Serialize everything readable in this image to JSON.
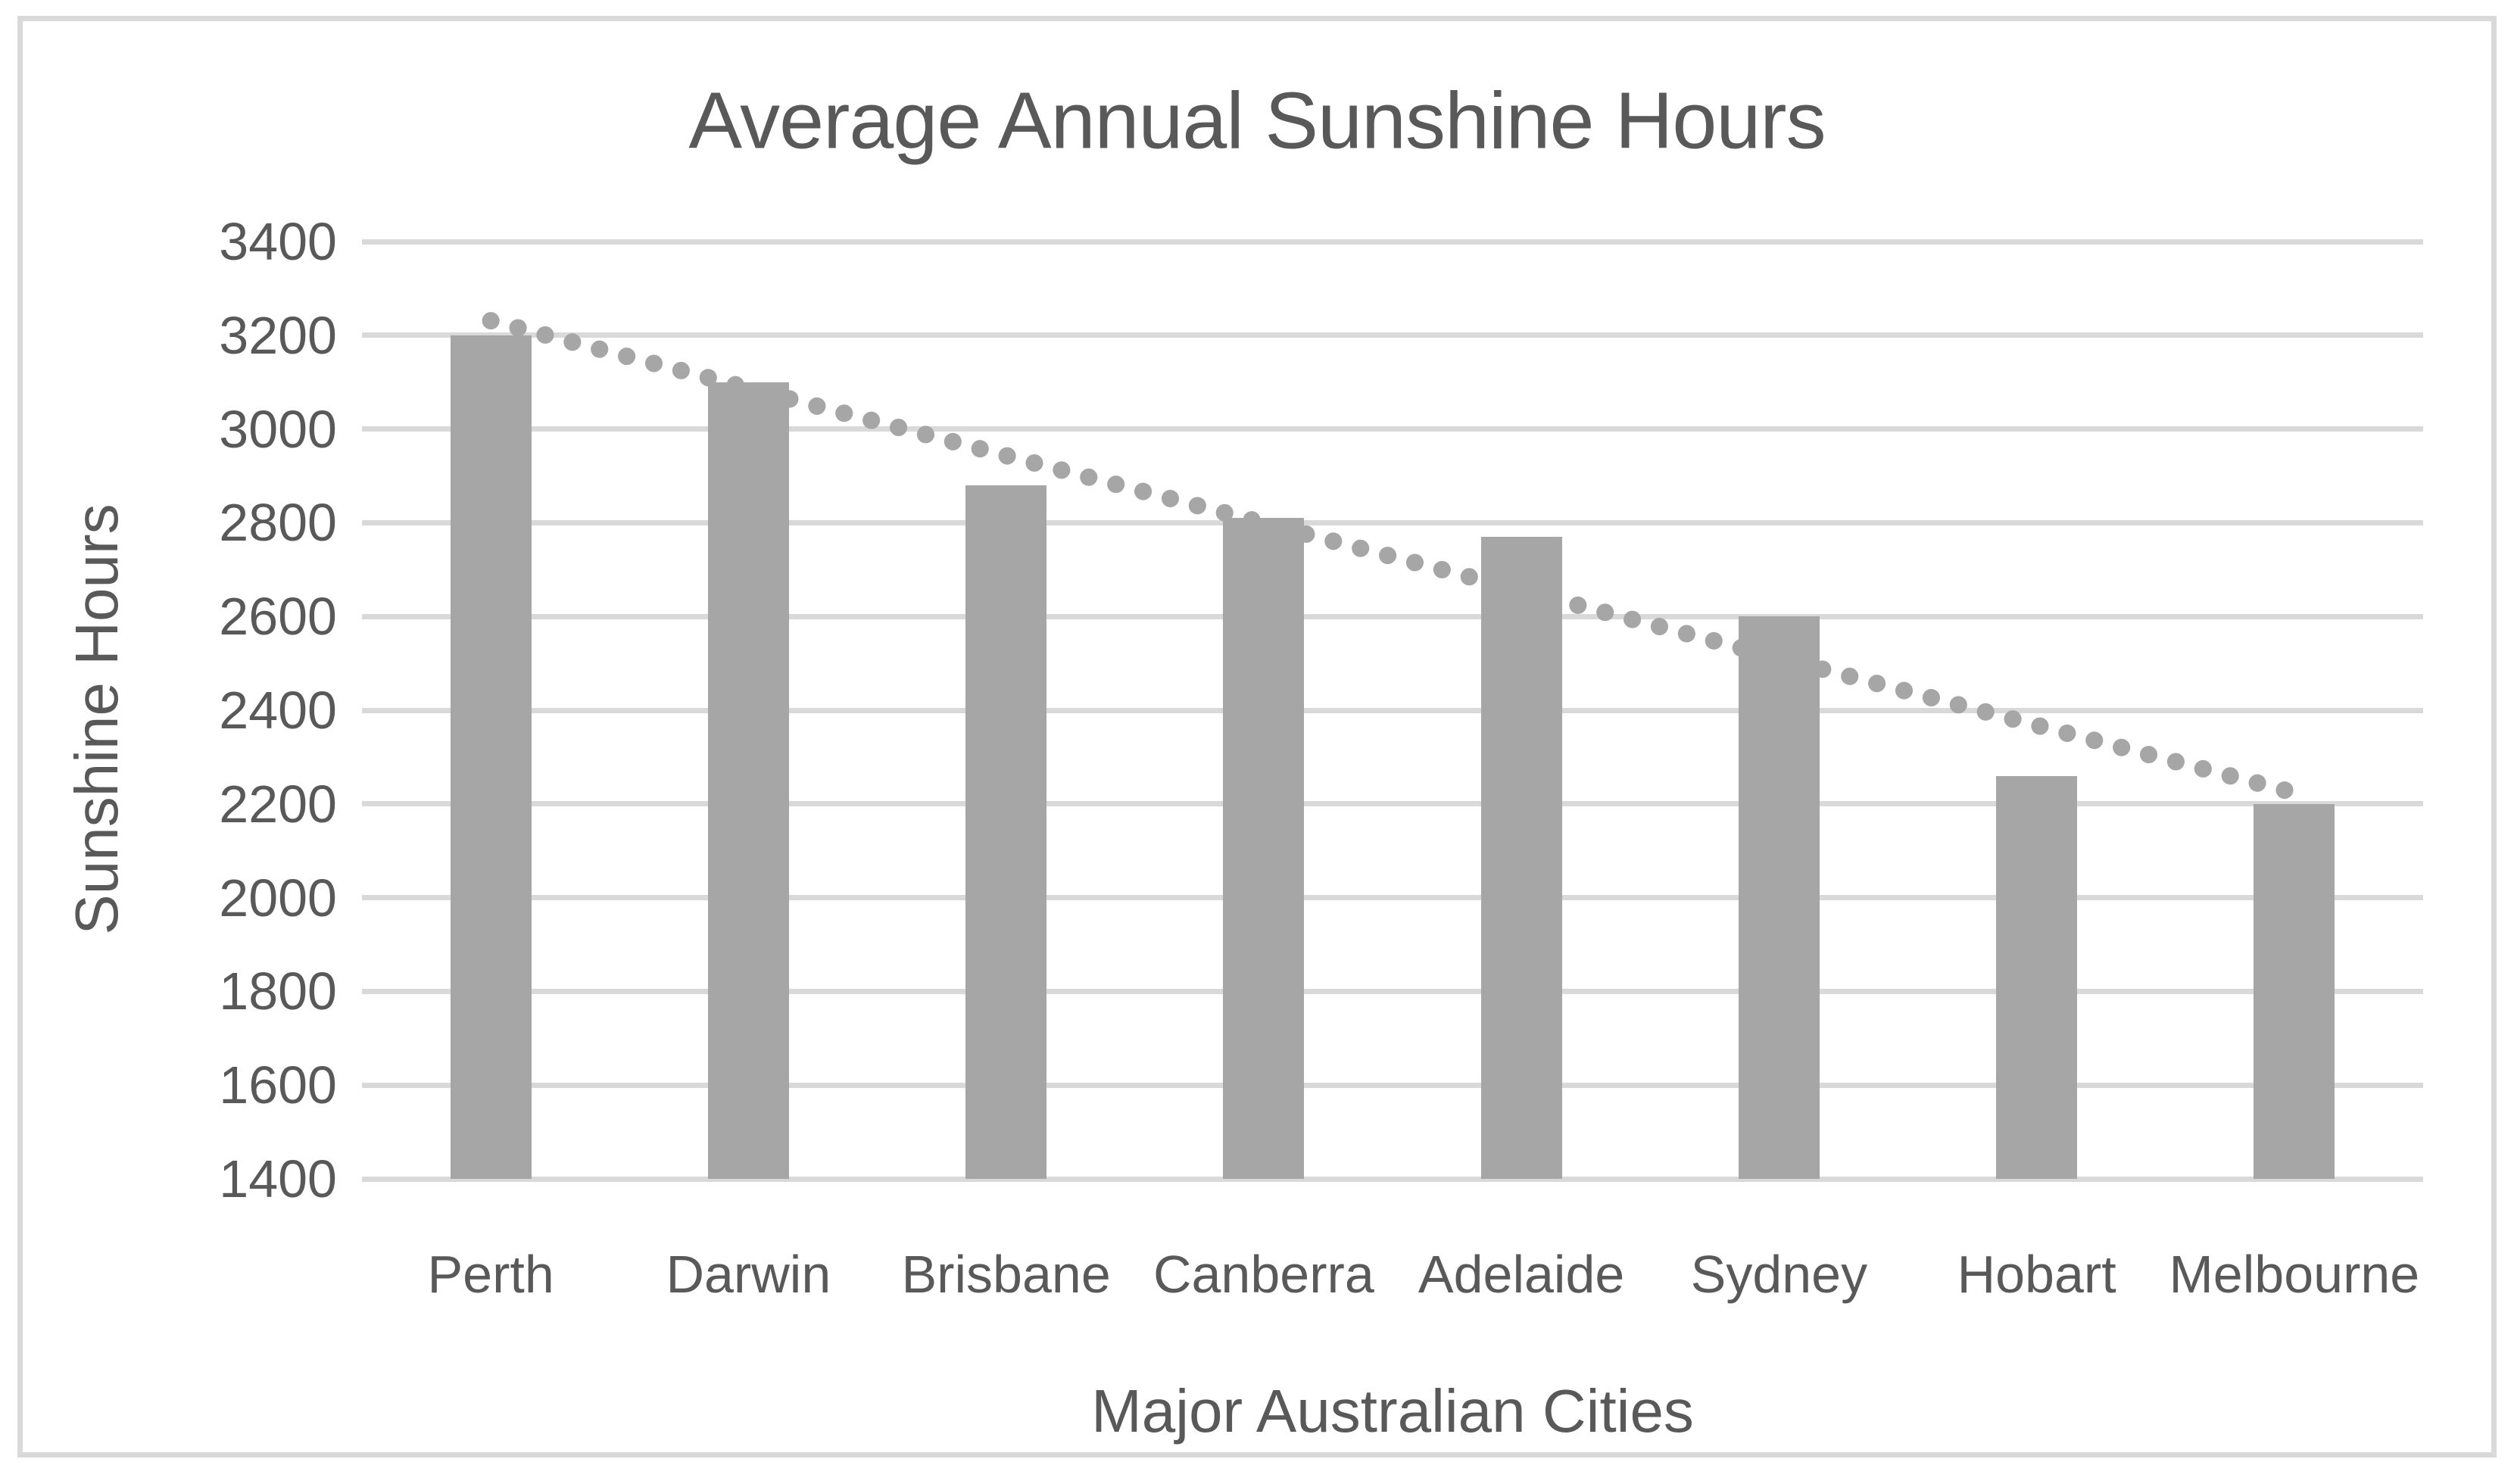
{
  "chart_data": {
    "type": "bar",
    "title": "Average Annual Sunshine Hours",
    "xlabel": "Major Australian Cities",
    "ylabel": "Sunshine Hours",
    "categories": [
      "Perth",
      "Darwin",
      "Brisbane",
      "Canberra",
      "Adelaide",
      "Sydney",
      "Hobart",
      "Melbourne"
    ],
    "values": [
      3200,
      3100,
      2880,
      2810,
      2770,
      2600,
      2260,
      2200
    ],
    "ylim": [
      1400,
      3400
    ],
    "yticks": [
      3400,
      3200,
      3000,
      2800,
      2600,
      2400,
      2200,
      2000,
      1800,
      1600,
      1400
    ],
    "grid": "horizontal",
    "legend": "none",
    "trendline": {
      "type": "linear",
      "style": "dotted",
      "start_value": 3231,
      "end_value": 2224
    }
  },
  "colors": {
    "background": "#ffffff",
    "frame": "#d9d9d9",
    "gridline": "#d9d9d9",
    "bar": "#a6a6a6",
    "trendline": "#a6a6a6",
    "text": "#595959"
  }
}
